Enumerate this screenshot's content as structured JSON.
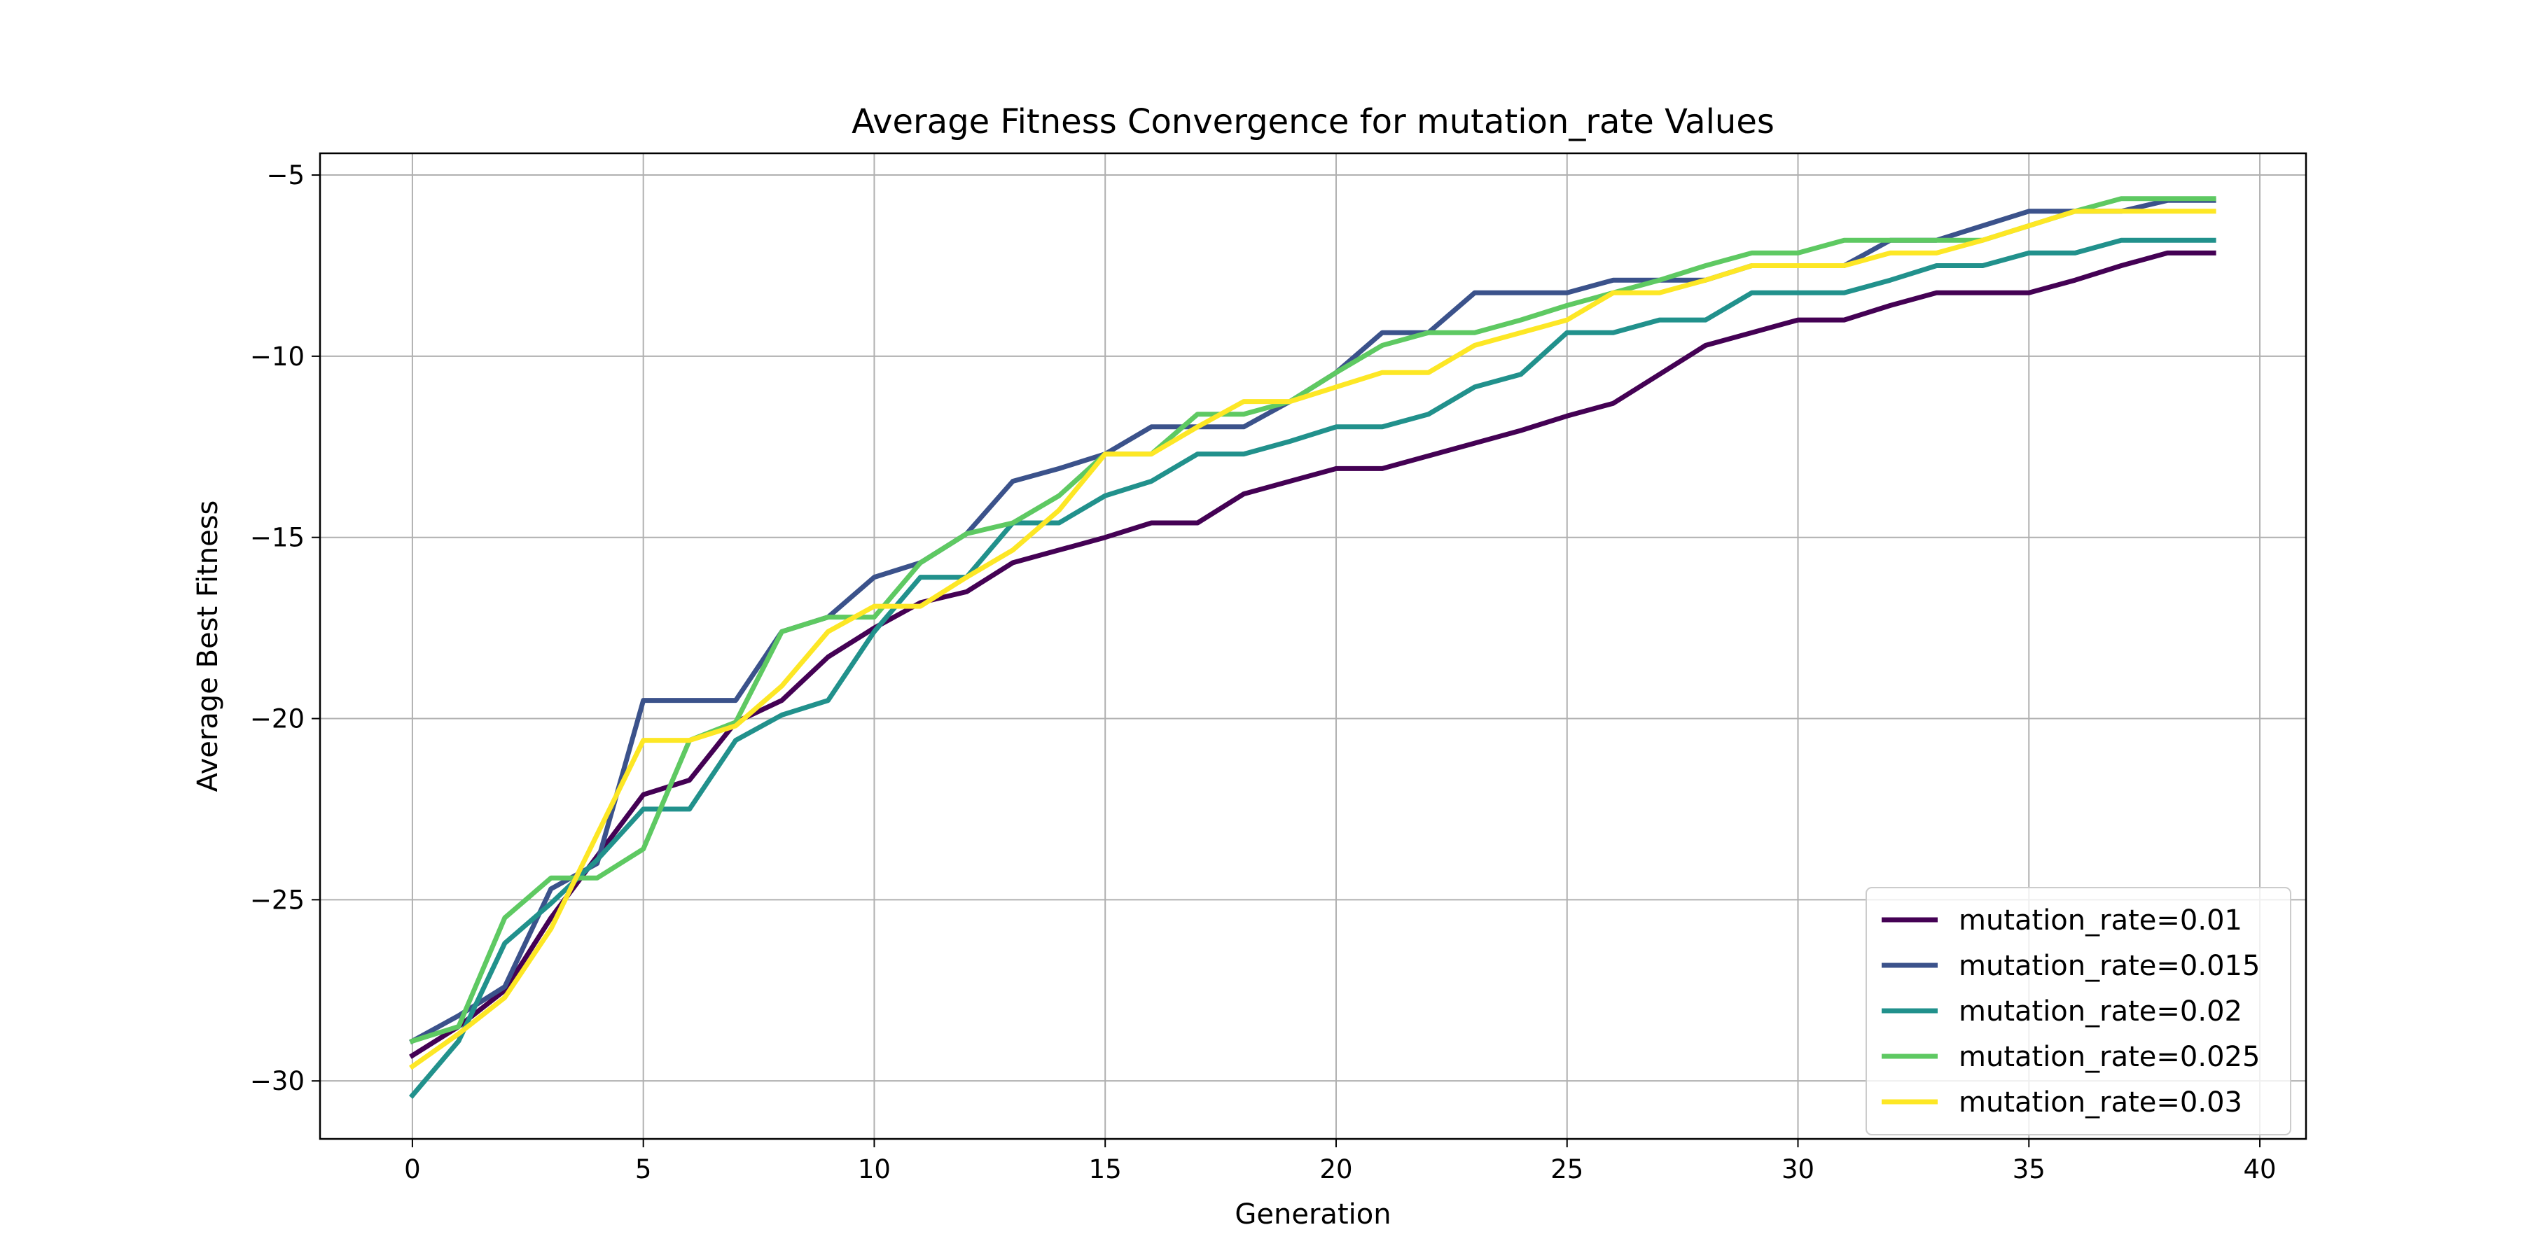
{
  "chart_data": {
    "type": "line",
    "title": "Average Fitness Convergence for mutation_rate Values",
    "xlabel": "Generation",
    "ylabel": "Average Best Fitness",
    "xlim": [
      -2,
      41
    ],
    "ylim": [
      -31.6,
      -4.4
    ],
    "xticks": [
      0,
      5,
      10,
      15,
      20,
      25,
      30,
      35,
      40
    ],
    "yticks": [
      -30,
      -25,
      -20,
      -15,
      -10,
      -5
    ],
    "xtick_labels": [
      "0",
      "5",
      "10",
      "15",
      "20",
      "25",
      "30",
      "35",
      "40"
    ],
    "ytick_labels": [
      "−30",
      "−25",
      "−20",
      "−15",
      "−10",
      "−5"
    ],
    "grid": true,
    "legend_position": "lower-right",
    "x": [
      0,
      1,
      2,
      3,
      4,
      5,
      6,
      7,
      8,
      9,
      10,
      11,
      12,
      13,
      14,
      15,
      16,
      17,
      18,
      19,
      20,
      21,
      22,
      23,
      24,
      25,
      26,
      27,
      28,
      29,
      30,
      31,
      32,
      33,
      34,
      35,
      36,
      37,
      38,
      39
    ],
    "series": [
      {
        "name": "mutation_rate=0.01",
        "color": "#440154",
        "values": [
          -29.3,
          -28.5,
          -27.5,
          -25.5,
          -23.8,
          -22.1,
          -21.7,
          -20.1,
          -19.5,
          -18.3,
          -17.5,
          -16.8,
          -16.5,
          -15.7,
          -15.35,
          -15.0,
          -14.6,
          -14.6,
          -13.8,
          -13.45,
          -13.1,
          -13.1,
          -12.75,
          -12.4,
          -12.05,
          -11.65,
          -11.3,
          -10.5,
          -9.7,
          -9.35,
          -9.0,
          -9.0,
          -8.6,
          -8.25,
          -8.25,
          -8.25,
          -7.9,
          -7.5,
          -7.15,
          -7.15
        ]
      },
      {
        "name": "mutation_rate=0.015",
        "color": "#3b528b",
        "values": [
          -28.9,
          -28.2,
          -27.4,
          -24.7,
          -24.0,
          -19.5,
          -19.5,
          -19.5,
          -17.6,
          -17.2,
          -16.1,
          -15.7,
          -14.9,
          -13.45,
          -13.1,
          -12.7,
          -11.95,
          -11.95,
          -11.95,
          -11.25,
          -10.45,
          -9.35,
          -9.35,
          -8.25,
          -8.25,
          -8.25,
          -7.9,
          -7.9,
          -7.9,
          -7.5,
          -7.5,
          -7.5,
          -6.8,
          -6.8,
          -6.4,
          -6.0,
          -6.0,
          -6.0,
          -5.7,
          -5.7
        ]
      },
      {
        "name": "mutation_rate=0.02",
        "color": "#21918c",
        "values": [
          -30.4,
          -28.9,
          -26.2,
          -25.1,
          -23.9,
          -22.5,
          -22.5,
          -20.6,
          -19.9,
          -19.5,
          -17.6,
          -16.1,
          -16.1,
          -14.6,
          -14.6,
          -13.85,
          -13.45,
          -12.7,
          -12.7,
          -12.35,
          -11.95,
          -11.95,
          -11.6,
          -10.85,
          -10.5,
          -9.35,
          -9.35,
          -9.0,
          -9.0,
          -8.25,
          -8.25,
          -8.25,
          -7.9,
          -7.5,
          -7.5,
          -7.15,
          -7.15,
          -6.8,
          -6.8,
          -6.8
        ]
      },
      {
        "name": "mutation_rate=0.025",
        "color": "#5ec962",
        "values": [
          -28.9,
          -28.5,
          -25.5,
          -24.4,
          -24.4,
          -23.6,
          -20.6,
          -20.1,
          -17.6,
          -17.2,
          -17.2,
          -15.7,
          -14.9,
          -14.6,
          -13.85,
          -12.7,
          -12.7,
          -11.6,
          -11.6,
          -11.25,
          -10.45,
          -9.7,
          -9.35,
          -9.35,
          -9.0,
          -8.6,
          -8.25,
          -7.9,
          -7.5,
          -7.15,
          -7.15,
          -6.8,
          -6.8,
          -6.8,
          -6.8,
          -6.4,
          -6.0,
          -5.65,
          -5.65,
          -5.65
        ]
      },
      {
        "name": "mutation_rate=0.03",
        "color": "#fde725",
        "values": [
          -29.6,
          -28.7,
          -27.7,
          -25.8,
          -23.2,
          -20.6,
          -20.6,
          -20.2,
          -19.1,
          -17.6,
          -16.9,
          -16.9,
          -16.1,
          -15.35,
          -14.25,
          -12.7,
          -12.7,
          -11.95,
          -11.25,
          -11.25,
          -10.85,
          -10.45,
          -10.45,
          -9.7,
          -9.35,
          -9.0,
          -8.25,
          -8.25,
          -7.9,
          -7.5,
          -7.5,
          -7.5,
          -7.15,
          -7.15,
          -6.8,
          -6.4,
          -6.0,
          -6.0,
          -6.0,
          -6.0
        ]
      }
    ]
  }
}
